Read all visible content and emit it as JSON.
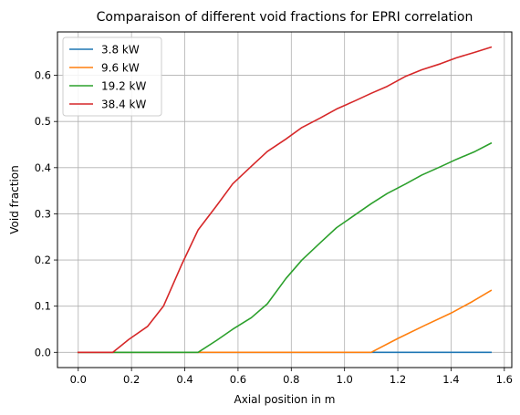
{
  "chart_data": {
    "type": "line",
    "title": "Comparaison of different void fractions for EPRI correlation",
    "xlabel": "Axial position in m",
    "ylabel": "Void fraction",
    "xlim": [
      -0.078,
      1.628
    ],
    "ylim": [
      -0.033,
      0.694
    ],
    "xticks": [
      0.0,
      0.2,
      0.4,
      0.6,
      0.8,
      1.0,
      1.2,
      1.4,
      1.6
    ],
    "xtick_labels": [
      "0.0",
      "0.2",
      "0.4",
      "0.6",
      "0.8",
      "1.0",
      "1.2",
      "1.4",
      "1.6"
    ],
    "yticks": [
      0.0,
      0.1,
      0.2,
      0.3,
      0.4,
      0.5,
      0.6
    ],
    "ytick_labels": [
      "0.0",
      "0.1",
      "0.2",
      "0.3",
      "0.4",
      "0.5",
      "0.6"
    ],
    "grid": true,
    "legend_position": "top-left",
    "series": [
      {
        "name": "3.8 kW",
        "color": "#1f77b4",
        "x": [
          0.0,
          1.55
        ],
        "y": [
          0.0,
          0.0
        ]
      },
      {
        "name": "9.6 kW",
        "color": "#ff7f0e",
        "x": [
          0.0,
          1.1,
          1.2,
          1.3,
          1.4,
          1.48,
          1.55
        ],
        "y": [
          0.0,
          0.0,
          0.03,
          0.058,
          0.085,
          0.11,
          0.134
        ]
      },
      {
        "name": "19.2 kW",
        "color": "#2ca02c",
        "x": [
          0.0,
          0.45,
          0.52,
          0.58,
          0.65,
          0.71,
          0.78,
          0.84,
          0.91,
          0.97,
          1.04,
          1.1,
          1.16,
          1.23,
          1.29,
          1.36,
          1.42,
          1.49,
          1.55
        ],
        "y": [
          0.0,
          0.0,
          0.026,
          0.05,
          0.075,
          0.105,
          0.16,
          0.2,
          0.238,
          0.27,
          0.298,
          0.322,
          0.344,
          0.365,
          0.384,
          0.402,
          0.418,
          0.435,
          0.453
        ]
      },
      {
        "name": "38.4 kW",
        "color": "#d62728",
        "x": [
          0.0,
          0.13,
          0.19,
          0.26,
          0.32,
          0.39,
          0.45,
          0.52,
          0.58,
          0.65,
          0.71,
          0.78,
          0.84,
          0.91,
          0.97,
          1.04,
          1.1,
          1.16,
          1.23,
          1.29,
          1.36,
          1.42,
          1.49,
          1.55
        ],
        "y": [
          0.0,
          0.0,
          0.028,
          0.056,
          0.1,
          0.192,
          0.265,
          0.318,
          0.365,
          0.403,
          0.435,
          0.462,
          0.487,
          0.508,
          0.527,
          0.545,
          0.561,
          0.576,
          0.598,
          0.612,
          0.625,
          0.638,
          0.65,
          0.661
        ]
      }
    ]
  }
}
